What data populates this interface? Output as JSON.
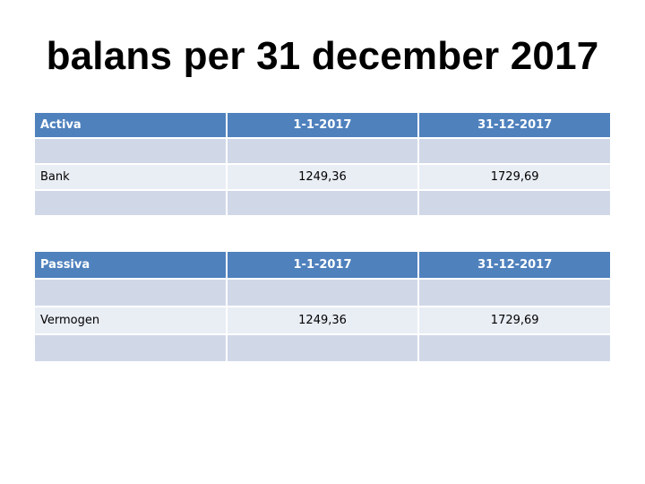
{
  "title": "balans per 31 december 2017",
  "colors": {
    "header_bg": "#4f81bd",
    "row_dark": "#d0d8e8",
    "row_light": "#e9edf4"
  },
  "activa_table": {
    "headers": [
      "Activa",
      "1-1-2017",
      "31-12-2017"
    ],
    "rows": [
      [
        "",
        "",
        ""
      ],
      [
        "Bank",
        "1249,36",
        "1729,69"
      ],
      [
        "",
        "",
        ""
      ]
    ]
  },
  "passiva_table": {
    "headers": [
      "Passiva",
      "1-1-2017",
      "31-12-2017"
    ],
    "rows": [
      [
        "",
        "",
        ""
      ],
      [
        "Vermogen",
        "1249,36",
        "1729,69"
      ],
      [
        "",
        "",
        ""
      ]
    ]
  }
}
